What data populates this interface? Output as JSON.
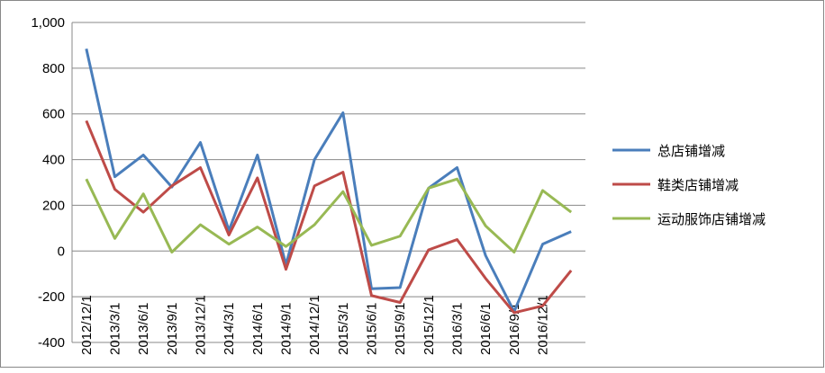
{
  "chart_data": {
    "type": "line",
    "categories": [
      "2012/12/1",
      "2013/3/1",
      "2013/6/1",
      "2013/9/1",
      "2013/12/1",
      "2014/3/1",
      "2014/6/1",
      "2014/9/1",
      "2014/12/1",
      "2015/3/1",
      "2015/6/1",
      "2015/9/1",
      "2015/12/1",
      "2016/3/1",
      "2016/6/1",
      "2016/9/1",
      "2016/12/1",
      null
    ],
    "series": [
      {
        "name": "总店铺增减",
        "color": "#4a7ebb",
        "values": [
          885,
          325,
          420,
          280,
          475,
          90,
          420,
          -60,
          400,
          605,
          -165,
          -160,
          275,
          365,
          -20,
          -265,
          30,
          85
        ]
      },
      {
        "name": "鞋类店铺增减",
        "color": "#be4b48",
        "values": [
          570,
          270,
          170,
          285,
          365,
          70,
          320,
          -80,
          285,
          345,
          -195,
          -225,
          5,
          50,
          -120,
          -270,
          -240,
          -85
        ]
      },
      {
        "name": "运动服饰店铺增减",
        "color": "#98b954",
        "values": [
          315,
          55,
          250,
          -5,
          115,
          30,
          105,
          20,
          115,
          260,
          25,
          65,
          275,
          315,
          110,
          -5,
          265,
          170
        ]
      }
    ],
    "ylim": [
      -400,
      1000
    ],
    "yticks": [
      -400,
      -200,
      0,
      200,
      400,
      600,
      800,
      {
        "value": 1000,
        "label": "1,000"
      }
    ],
    "grid": true,
    "legend": "right"
  }
}
